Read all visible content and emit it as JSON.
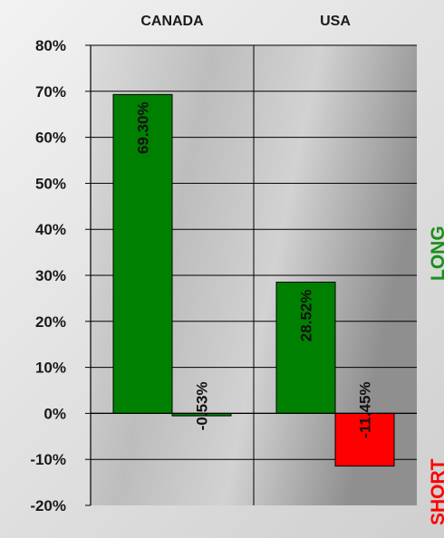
{
  "chart_data": {
    "type": "bar",
    "categories": [
      "CANADA",
      "USA"
    ],
    "bars": [
      {
        "category": "CANADA",
        "slot": 0,
        "value": 69.3,
        "label": "69.30%",
        "color": "#008000"
      },
      {
        "category": "CANADA",
        "slot": 1,
        "value": -0.53,
        "label": "-0.53%",
        "color": "#008000"
      },
      {
        "category": "USA",
        "slot": 0,
        "value": 28.52,
        "label": "28.52%",
        "color": "#008000"
      },
      {
        "category": "USA",
        "slot": 1,
        "value": -11.45,
        "label": "-11.45%",
        "color": "#ff0000"
      }
    ],
    "y_ticks": [
      "-20%",
      "-10%",
      "0%",
      "10%",
      "20%",
      "30%",
      "40%",
      "50%",
      "60%",
      "70%",
      "80%"
    ],
    "ylim": [
      -20,
      80
    ],
    "grid": true,
    "title": "",
    "xlabel": "",
    "ylabel": ""
  },
  "side_labels": {
    "long": "LONG",
    "short": "SHORT",
    "long_color": "#1a8f1a",
    "short_color": "#ff0000"
  }
}
